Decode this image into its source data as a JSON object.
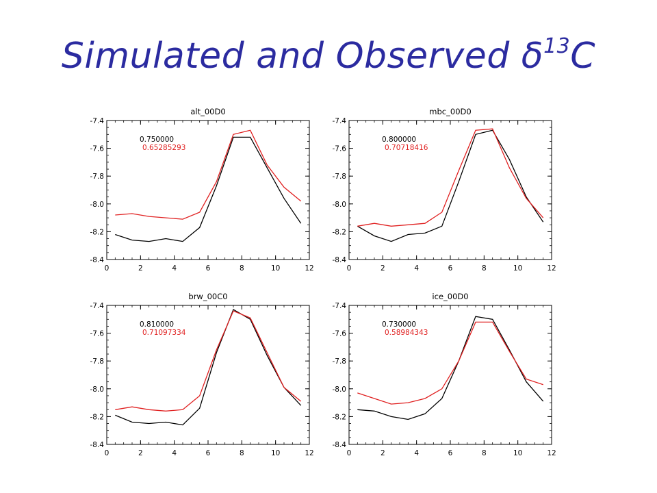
{
  "title": {
    "main": "Simulated and Observed δ",
    "superscript": "13",
    "suffix": "C"
  },
  "colors": {
    "title": "#2b2ba0",
    "series_black": "#000000",
    "series_red": "#e02020"
  },
  "chart_data": [
    {
      "type": "line",
      "title": "alt_00D0",
      "xlim": [
        0,
        12
      ],
      "ylim": [
        -8.4,
        -7.4
      ],
      "xticks": [
        0,
        2,
        4,
        6,
        8,
        10,
        12
      ],
      "yticks": [
        -7.4,
        -7.6,
        -7.8,
        -8.0,
        -8.2,
        -8.4
      ],
      "ytick_labels": [
        "-7.4",
        "-7.6",
        "-7.8",
        "-8.0",
        "-8.2",
        "-8.4"
      ],
      "annotations": [
        "0.750000",
        "0.65285293"
      ],
      "x": [
        0.5,
        1.5,
        2.5,
        3.5,
        4.5,
        5.5,
        6.5,
        7.5,
        8.5,
        9.5,
        10.5,
        11.5
      ],
      "series": [
        {
          "color": "#000000",
          "values": [
            -8.22,
            -8.26,
            -8.27,
            -8.25,
            -8.27,
            -8.17,
            -7.87,
            -7.52,
            -7.52,
            -7.74,
            -7.96,
            -8.14
          ]
        },
        {
          "color": "#e02020",
          "values": [
            -8.08,
            -8.07,
            -8.09,
            -8.1,
            -8.11,
            -8.06,
            -7.84,
            -7.5,
            -7.47,
            -7.72,
            -7.88,
            -7.98
          ]
        }
      ]
    },
    {
      "type": "line",
      "title": "mbc_00D0",
      "xlim": [
        0,
        12
      ],
      "ylim": [
        -8.4,
        -7.4
      ],
      "xticks": [
        0,
        2,
        4,
        6,
        8,
        10,
        12
      ],
      "yticks": [
        -7.4,
        -7.6,
        -7.8,
        -8.0,
        -8.2,
        -8.4
      ],
      "ytick_labels": [
        "-7.4",
        "-7.6",
        "-7.8",
        "-8.0",
        "-8.2",
        "-8.4"
      ],
      "annotations": [
        "0.800000",
        "0.70718416"
      ],
      "x": [
        0.5,
        1.5,
        2.5,
        3.5,
        4.5,
        5.5,
        6.5,
        7.5,
        8.5,
        9.5,
        10.5,
        11.5
      ],
      "series": [
        {
          "color": "#000000",
          "values": [
            -8.16,
            -8.23,
            -8.27,
            -8.22,
            -8.21,
            -8.16,
            -7.84,
            -7.5,
            -7.47,
            -7.68,
            -7.95,
            -8.13
          ]
        },
        {
          "color": "#e02020",
          "values": [
            -8.16,
            -8.14,
            -8.16,
            -8.15,
            -8.14,
            -8.06,
            -7.76,
            -7.47,
            -7.46,
            -7.74,
            -7.96,
            -8.1
          ]
        }
      ]
    },
    {
      "type": "line",
      "title": "brw_00C0",
      "xlim": [
        0,
        12
      ],
      "ylim": [
        -8.4,
        -7.4
      ],
      "xticks": [
        0,
        2,
        4,
        6,
        8,
        10,
        12
      ],
      "yticks": [
        -7.4,
        -7.6,
        -7.8,
        -8.0,
        -8.2,
        -8.4
      ],
      "ytick_labels": [
        "-7.4",
        "-7.6",
        "-7.8",
        "-8.0",
        "-8.2",
        "-8.4"
      ],
      "annotations": [
        "0.810000",
        "0.71097334"
      ],
      "x": [
        0.5,
        1.5,
        2.5,
        3.5,
        4.5,
        5.5,
        6.5,
        7.5,
        8.5,
        9.5,
        10.5,
        11.5
      ],
      "series": [
        {
          "color": "#000000",
          "values": [
            -8.19,
            -8.24,
            -8.25,
            -8.24,
            -8.26,
            -8.14,
            -7.74,
            -7.43,
            -7.5,
            -7.76,
            -7.99,
            -8.12
          ]
        },
        {
          "color": "#e02020",
          "values": [
            -8.15,
            -8.13,
            -8.15,
            -8.16,
            -8.15,
            -8.05,
            -7.72,
            -7.44,
            -7.49,
            -7.74,
            -7.99,
            -8.09
          ]
        }
      ]
    },
    {
      "type": "line",
      "title": "ice_00D0",
      "xlim": [
        0,
        12
      ],
      "ylim": [
        -8.4,
        -7.4
      ],
      "xticks": [
        0,
        2,
        4,
        6,
        8,
        10,
        12
      ],
      "yticks": [
        -7.4,
        -7.6,
        -7.8,
        -8.0,
        -8.2,
        -8.4
      ],
      "ytick_labels": [
        "-7.4",
        "-7.6",
        "-7.8",
        "-8.0",
        "-8.2",
        "-8.4"
      ],
      "annotations": [
        "0.730000",
        "0.58984343"
      ],
      "x": [
        0.5,
        1.5,
        2.5,
        3.5,
        4.5,
        5.5,
        6.5,
        7.5,
        8.5,
        9.5,
        10.5,
        11.5
      ],
      "series": [
        {
          "color": "#000000",
          "values": [
            -8.15,
            -8.16,
            -8.2,
            -8.22,
            -8.18,
            -8.07,
            -7.8,
            -7.48,
            -7.5,
            -7.72,
            -7.95,
            -8.09
          ]
        },
        {
          "color": "#e02020",
          "values": [
            -8.03,
            -8.07,
            -8.11,
            -8.1,
            -8.07,
            -8.0,
            -7.8,
            -7.52,
            -7.52,
            -7.73,
            -7.93,
            -7.97
          ]
        }
      ]
    }
  ]
}
